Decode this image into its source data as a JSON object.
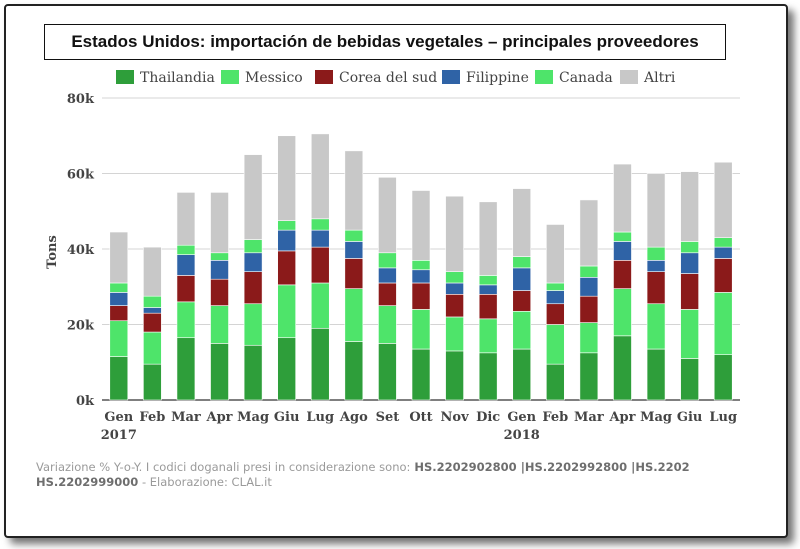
{
  "chart_data": {
    "type": "bar",
    "stacked": true,
    "title": "Estados Unidos: importación de bebidas vegetales – principales proveedores",
    "ylabel": "Tons",
    "ylim": [
      0,
      80000
    ],
    "yticks": [
      0,
      20000,
      40000,
      60000,
      80000
    ],
    "ytick_labels": [
      "0k",
      "20k",
      "40k",
      "60k",
      "80k"
    ],
    "categories": [
      "Gen",
      "Feb",
      "Mar",
      "Apr",
      "Mag",
      "Giu",
      "Lug",
      "Ago",
      "Set",
      "Ott",
      "Nov",
      "Dic",
      "Gen",
      "Feb",
      "Mar",
      "Apr",
      "Mag",
      "Giu",
      "Lug"
    ],
    "year_labels": [
      {
        "index": 0,
        "label": "2017"
      },
      {
        "index": 12,
        "label": "2018"
      }
    ],
    "legend_position": "top",
    "grid": true,
    "series": [
      {
        "name": "Thailandia",
        "color": "#2e9e3a",
        "values": [
          11500,
          9500,
          16500,
          15000,
          14500,
          16500,
          19000,
          15500,
          15000,
          13500,
          13000,
          12500,
          13500,
          9500,
          12500,
          17000,
          13500,
          11000,
          12000
        ]
      },
      {
        "name": "Messico",
        "color": "#4ee46a",
        "values": [
          9500,
          8500,
          9500,
          10000,
          11000,
          14000,
          12000,
          14000,
          10000,
          10500,
          9000,
          9000,
          10000,
          10500,
          8000,
          12500,
          12000,
          13000,
          16500
        ]
      },
      {
        "name": "Corea del sud",
        "color": "#8b1a1a",
        "values": [
          4000,
          5000,
          7000,
          7000,
          8500,
          9000,
          9500,
          8000,
          6000,
          7000,
          6000,
          6500,
          5500,
          5500,
          7000,
          7500,
          8500,
          9500,
          9000
        ]
      },
      {
        "name": "Filippine",
        "color": "#2f63a6",
        "values": [
          3500,
          1500,
          5500,
          5000,
          5000,
          5500,
          4500,
          4500,
          4000,
          3500,
          3000,
          2500,
          6000,
          3500,
          5000,
          5000,
          3000,
          5500,
          3000
        ]
      },
      {
        "name": "Canada",
        "color": "#4ee46a",
        "values": [
          2500,
          3000,
          2500,
          2000,
          3500,
          2500,
          3000,
          3000,
          4000,
          2500,
          3000,
          2500,
          3000,
          2000,
          3000,
          2500,
          3500,
          3000,
          2500
        ]
      },
      {
        "name": "Altri",
        "color": "#c8c8c8",
        "values": [
          13500,
          13000,
          14000,
          16000,
          22500,
          22500,
          22500,
          21000,
          20000,
          18500,
          20000,
          19500,
          18000,
          15500,
          17500,
          18000,
          19500,
          18500,
          20000
        ]
      }
    ]
  },
  "footer": {
    "lead": "Variazione % Y-o-Y.  I codici doganali presi in considerazione sono:",
    "codes_line1": " HS.2202902800 |HS.2202992800 |HS.2202",
    "codes_line2": "HS.2202999000",
    "tail": " - Elaborazione: CLAL.it"
  }
}
